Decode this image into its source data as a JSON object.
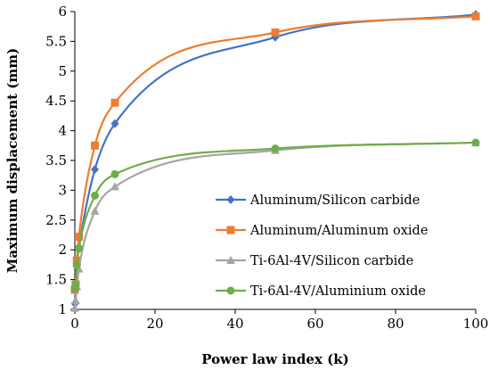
{
  "chart_data": {
    "type": "line",
    "xlabel": "Power law index (k)",
    "ylabel": "Maximum displacement (mm)",
    "xlim": [
      0,
      100
    ],
    "ylim": [
      1,
      6
    ],
    "x_ticks": [
      "0",
      "20",
      "40",
      "60",
      "80",
      "100"
    ],
    "y_ticks": [
      "1",
      "1.5",
      "2",
      "2.5",
      "3",
      "3.5",
      "4",
      "4.5",
      "5",
      "5.5",
      "6"
    ],
    "grid": false,
    "legend_position": "right",
    "series": [
      {
        "name": "Aluminum/Silicon carbide",
        "color": "#4472C4",
        "marker": "diamond",
        "x": [
          0,
          0.2,
          0.5,
          1,
          5,
          10,
          50,
          100
        ],
        "y": [
          1.1,
          1.4,
          1.8,
          2.05,
          3.35,
          4.12,
          5.57,
          5.95
        ]
      },
      {
        "name": "Aluminum/Aluminum oxide",
        "color": "#ED7D31",
        "marker": "square",
        "x": [
          0,
          0.2,
          0.5,
          1,
          5,
          10,
          50,
          100
        ],
        "y": [
          1.33,
          1.42,
          1.82,
          2.22,
          3.75,
          4.47,
          5.65,
          5.92
        ]
      },
      {
        "name": "Ti-6Al-4V/Silicon carbide",
        "color": "#A5A5A5",
        "marker": "triangle",
        "x": [
          0,
          0.2,
          0.5,
          1,
          5,
          10,
          50,
          100
        ],
        "y": [
          1.02,
          1.15,
          1.38,
          1.68,
          2.65,
          3.06,
          3.67,
          3.8
        ]
      },
      {
        "name": "Ti-6Al-4V/Aluminium oxide",
        "color": "#70AD47",
        "marker": "circle",
        "x": [
          0,
          0.2,
          0.5,
          1,
          5,
          10,
          50,
          100
        ],
        "y": [
          1.35,
          1.42,
          1.74,
          2.02,
          2.91,
          3.27,
          3.7,
          3.8
        ]
      }
    ]
  }
}
